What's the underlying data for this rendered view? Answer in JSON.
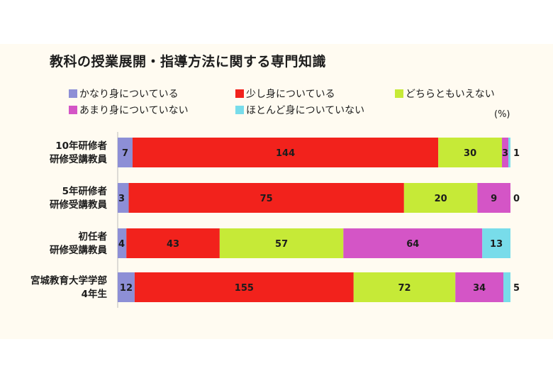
{
  "title": "教科の授業展開・指導方法に関する専門知識",
  "unit": "(%)",
  "chart_data": {
    "type": "bar",
    "orientation": "horizontal",
    "stacked": "100%",
    "title": "教科の授業展開・指導方法に関する専門知識",
    "categories": [
      [
        "10年研修者",
        "研修受講教員"
      ],
      [
        "5年研修者",
        "研修受講教員"
      ],
      [
        "初任者",
        "研修受講教員"
      ],
      [
        "宮城教育大学学部",
        "4年生"
      ]
    ],
    "series": [
      {
        "name": "かなり身についている",
        "color": "#8d8fd6",
        "values": [
          7,
          3,
          4,
          12
        ]
      },
      {
        "name": "少し身についている",
        "color": "#f2221c",
        "values": [
          144,
          75,
          43,
          155
        ]
      },
      {
        "name": "どちらともいえない",
        "color": "#c6ea37",
        "values": [
          30,
          20,
          57,
          72
        ]
      },
      {
        "name": "あまり身についていない",
        "color": "#d455c6",
        "values": [
          3,
          9,
          64,
          34
        ]
      },
      {
        "name": "ほとんど身についていない",
        "color": "#78dcea",
        "values": [
          1,
          0,
          13,
          5
        ]
      }
    ],
    "legend_position": "top",
    "grid": false
  }
}
